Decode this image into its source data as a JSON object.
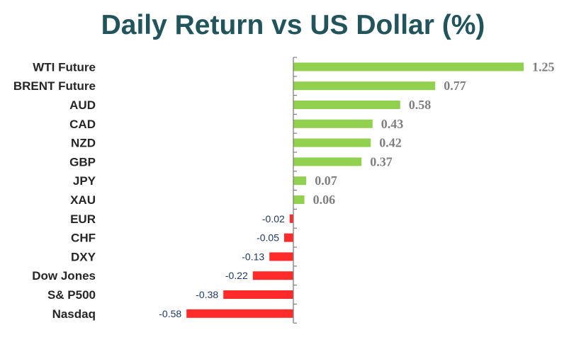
{
  "title": "Daily Return vs US Dollar (%)",
  "colors": {
    "positive": "#92d050",
    "negative": "#ff2a2a",
    "axis": "#7f7f7f",
    "title": "#22545c"
  },
  "chart_data": {
    "type": "bar",
    "orientation": "horizontal",
    "title": "Daily Return vs US Dollar (%)",
    "xlabel": "",
    "ylabel": "",
    "categories": [
      "WTI Future",
      "BRENT Future",
      "AUD",
      "CAD",
      "NZD",
      "GBP",
      "JPY",
      "XAU",
      "EUR",
      "CHF",
      "DXY",
      "Dow Jones",
      "S& P500",
      "Nasdaq"
    ],
    "values": [
      1.25,
      0.77,
      0.58,
      0.43,
      0.42,
      0.37,
      0.07,
      0.06,
      -0.02,
      -0.05,
      -0.13,
      -0.22,
      -0.38,
      -0.58
    ],
    "value_labels": [
      "1.25",
      "0.77",
      "0.58",
      "0.43",
      "0.42",
      "0.37",
      "0.07",
      "0.06",
      "-0.02",
      "-0.05",
      "-0.13",
      "-0.22",
      "-0.38",
      "-0.58"
    ],
    "xlim": [
      -0.58,
      1.25
    ],
    "grid": false,
    "legend": "none"
  }
}
